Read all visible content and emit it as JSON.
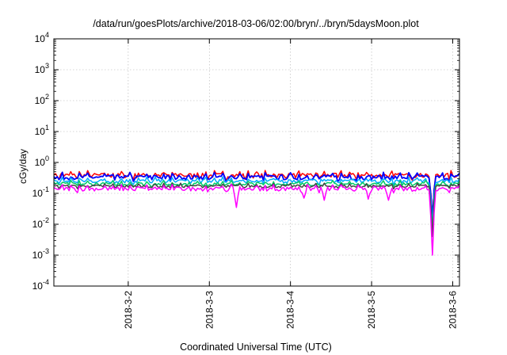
{
  "chart_data": {
    "type": "line",
    "title": "/data/run/goesPlots/archive/2018-03-06/02:00/bryn/../bryn/5daysMoon.plot",
    "xlabel": "Coordinated Universal Time (UTC)",
    "ylabel": "cGy/day",
    "yscale": "log",
    "ylim": [
      0.0001,
      10000
    ],
    "xlim": [
      "2018-03-01T02:00",
      "2018-03-06T02:00"
    ],
    "y_ticks": [
      {
        "base": "10",
        "exp": "-4",
        "value": 0.0001
      },
      {
        "base": "10",
        "exp": "-3",
        "value": 0.001
      },
      {
        "base": "10",
        "exp": "-2",
        "value": 0.01
      },
      {
        "base": "10",
        "exp": "-1",
        "value": 0.1
      },
      {
        "base": "10",
        "exp": "0",
        "value": 1
      },
      {
        "base": "10",
        "exp": "1",
        "value": 10
      },
      {
        "base": "10",
        "exp": "2",
        "value": 100
      },
      {
        "base": "10",
        "exp": "3",
        "value": 1000
      },
      {
        "base": "10",
        "exp": "4",
        "value": 10000
      }
    ],
    "x_ticks": [
      {
        "label": "2018-3-2",
        "value": "2018-03-02T00:00"
      },
      {
        "label": "2018-3-3",
        "value": "2018-03-03T00:00"
      },
      {
        "label": "2018-3-4",
        "value": "2018-03-04T00:00"
      },
      {
        "label": "2018-3-5",
        "value": "2018-03-05T00:00"
      },
      {
        "label": "2018-3-6",
        "value": "2018-03-06T00:00"
      }
    ],
    "grid": true,
    "series": [
      {
        "color": "#ff0000",
        "level": 0.38,
        "amplitude": 0.35,
        "dips": [
          [
            "2018-03-05T18:00",
            0.02
          ]
        ]
      },
      {
        "color": "#0000ff",
        "level": 0.33,
        "amplitude": 0.35,
        "dips": [
          [
            "2018-03-05T18:00",
            0.015
          ]
        ]
      },
      {
        "color": "#00aaff",
        "level": 0.25,
        "amplitude": 0.3,
        "dips": [
          [
            "2018-03-05T18:00",
            0.01
          ]
        ]
      },
      {
        "color": "#00cc66",
        "level": 0.2,
        "amplitude": 0.25,
        "dips": [
          [
            "2018-03-05T18:00",
            0.006
          ]
        ]
      },
      {
        "color": "#444444",
        "level": 0.17,
        "amplitude": 0.2,
        "dips": [
          [
            "2018-03-05T18:00",
            0.004
          ]
        ]
      },
      {
        "color": "#ff00ff",
        "level": 0.14,
        "amplitude": 0.3,
        "dips": [
          [
            "2018-03-03T08:00",
            0.035
          ],
          [
            "2018-03-04T04:00",
            0.07
          ],
          [
            "2018-03-04T10:00",
            0.06
          ],
          [
            "2018-03-04T23:00",
            0.065
          ],
          [
            "2018-03-05T05:00",
            0.06
          ],
          [
            "2018-03-05T18:00",
            0.001
          ]
        ]
      }
    ]
  }
}
